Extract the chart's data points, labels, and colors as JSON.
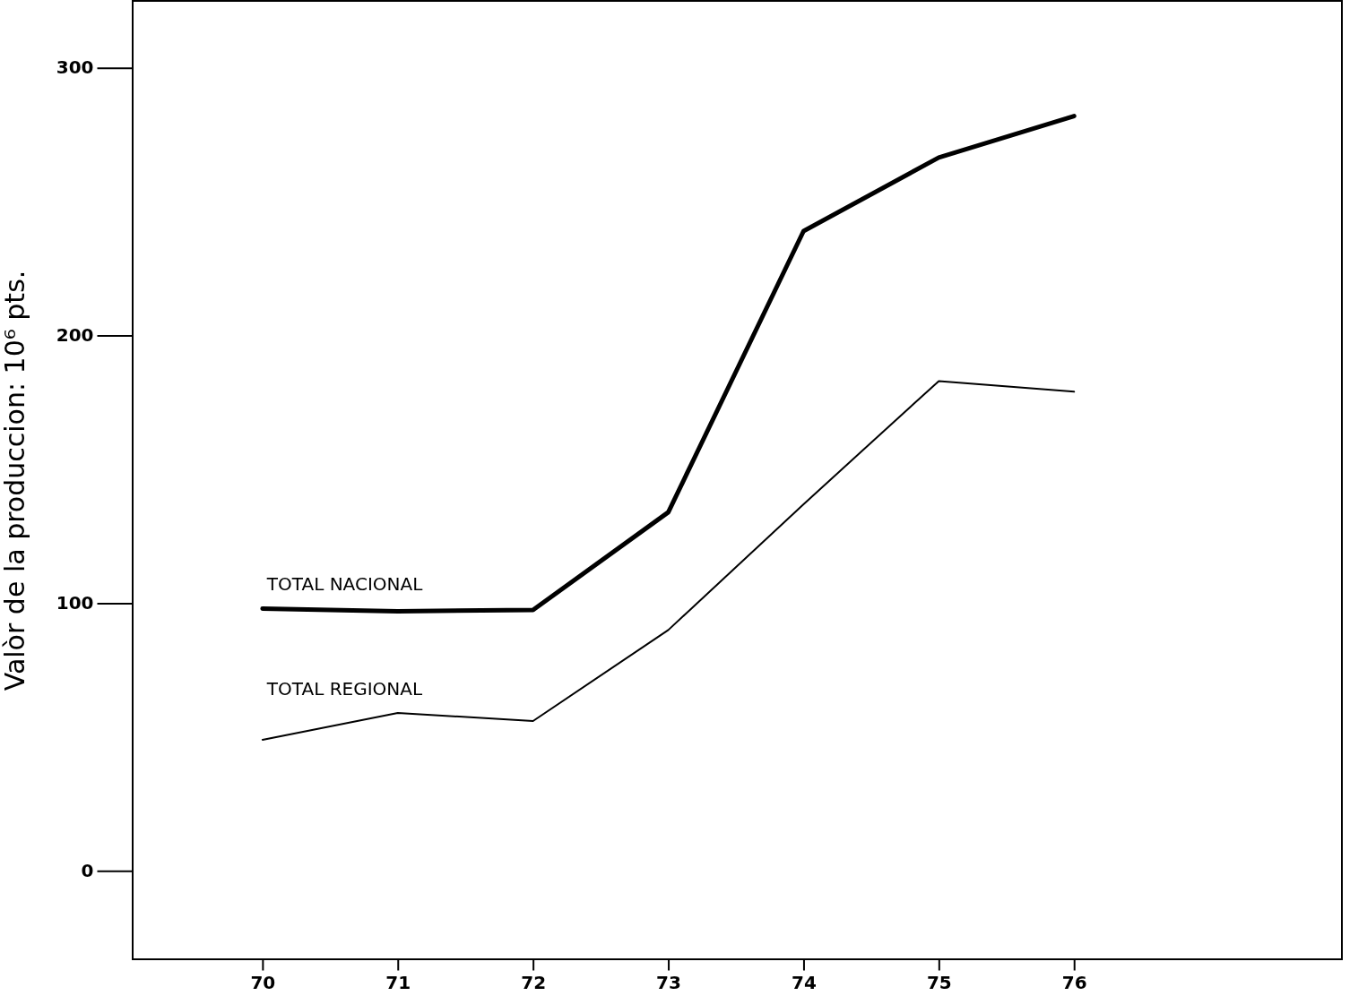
{
  "chart_data": {
    "type": "line",
    "ylabel": "Valòr de la produccion: 10⁶ pts.",
    "x": [
      70,
      71,
      72,
      73,
      74,
      75,
      76
    ],
    "series": [
      {
        "name": "TOTAL NACIONAL",
        "color": "#000000",
        "values": [
          98,
          97,
          97.5,
          134,
          239,
          266.5,
          282
        ]
      },
      {
        "name": "TOTAL REGIONAL",
        "color": "#000000",
        "values": [
          49,
          59,
          56,
          90,
          137,
          183,
          179
        ]
      }
    ],
    "xlim": [
      69.04,
      77.98
    ],
    "ylim": [
      -33,
      325
    ],
    "xticks": [
      70,
      71,
      72,
      73,
      74,
      75,
      76
    ],
    "yticks": [
      0,
      100,
      200,
      300
    ],
    "grid": false,
    "marker": "none",
    "line_style": "solid"
  }
}
